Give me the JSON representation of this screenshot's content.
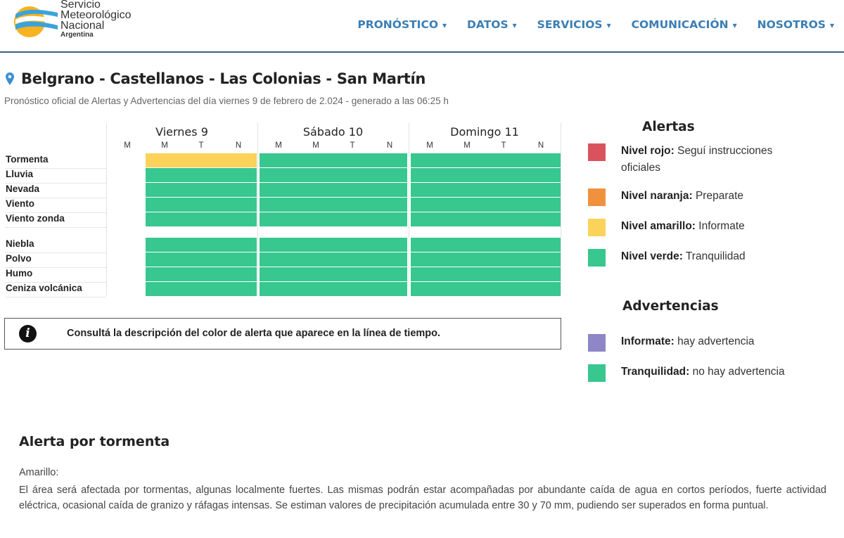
{
  "brand": {
    "line1": "Servicio",
    "line2": "Meteorológico",
    "line3": "Nacional",
    "country": "Argentina"
  },
  "nav": [
    {
      "label": "PRONÓSTICO"
    },
    {
      "label": "DATOS"
    },
    {
      "label": "SERVICIOS"
    },
    {
      "label": "COMUNICACIÓN"
    },
    {
      "label": "NOSOTROS"
    }
  ],
  "location": {
    "title": "Belgrano - Castellanos - Las Colonias - San Martín"
  },
  "subtitle": "Pronóstico oficial de Alertas y Advertencias del día viernes 9 de febrero de 2.024 - generado a las 06:25 h",
  "days": [
    {
      "label": "Viernes 9"
    },
    {
      "label": "Sábado 10"
    },
    {
      "label": "Domingo 11"
    }
  ],
  "slots": [
    "M",
    "M",
    "T",
    "N"
  ],
  "pre_slot": "M",
  "rows": [
    {
      "label": "Tormenta",
      "levels": [
        "amarillo",
        "verde",
        "verde"
      ]
    },
    {
      "label": "Lluvia",
      "levels": [
        "verde",
        "verde",
        "verde"
      ]
    },
    {
      "label": "Nevada",
      "levels": [
        "verde",
        "verde",
        "verde"
      ]
    },
    {
      "label": "Viento",
      "levels": [
        "verde",
        "verde",
        "verde"
      ]
    },
    {
      "label": "Viento zonda",
      "levels": [
        "verde",
        "verde",
        "verde"
      ]
    },
    {
      "label": "Niebla",
      "levels": [
        "verde",
        "verde",
        "verde"
      ]
    },
    {
      "label": "Polvo",
      "levels": [
        "verde",
        "verde",
        "verde"
      ]
    },
    {
      "label": "Humo",
      "levels": [
        "verde",
        "verde",
        "verde"
      ]
    },
    {
      "label": "Ceniza volcánica",
      "levels": [
        "verde",
        "verde",
        "verde"
      ]
    }
  ],
  "colors": {
    "rojo": "#d9535f",
    "naranja": "#ef913d",
    "amarillo": "#fbd35a",
    "verde": "#37c78f",
    "violeta": "#8e86c6",
    "brand_blue": "#3b7eb5"
  },
  "info": {
    "icon": "info-icon",
    "text": "Consultá la descripción del color de alerta que aparece en la línea de tiempo."
  },
  "legend": {
    "alertas_title": "Alertas",
    "alertas": [
      {
        "level": "rojo",
        "bold": "Nivel rojo:",
        "text": " Seguí instrucciones oficiales"
      },
      {
        "level": "naranja",
        "bold": "Nivel naranja:",
        "text": " Preparate"
      },
      {
        "level": "amarillo",
        "bold": "Nivel amarillo:",
        "text": " Informate"
      },
      {
        "level": "verde",
        "bold": "Nivel verde:",
        "text": " Tranquilidad"
      }
    ],
    "advertencias_title": "Advertencias",
    "advertencias": [
      {
        "level": "violeta",
        "bold": "Informate:",
        "text": " hay advertencia"
      },
      {
        "level": "verde",
        "bold": "Tranquilidad:",
        "text": " no hay advertencia"
      }
    ]
  },
  "description": {
    "title": "Alerta por tormenta",
    "level_label": "Amarillo:",
    "text": "El área será afectada por tormentas, algunas localmente fuertes. Las mismas podrán estar acompañadas por abundante caída de agua en cortos períodos, fuerte actividad eléctrica, ocasional caída de granizo y ráfagas intensas. Se estiman valores de precipitación acumulada entre 30 y 70 mm, pudiendo ser superados en forma puntual."
  }
}
